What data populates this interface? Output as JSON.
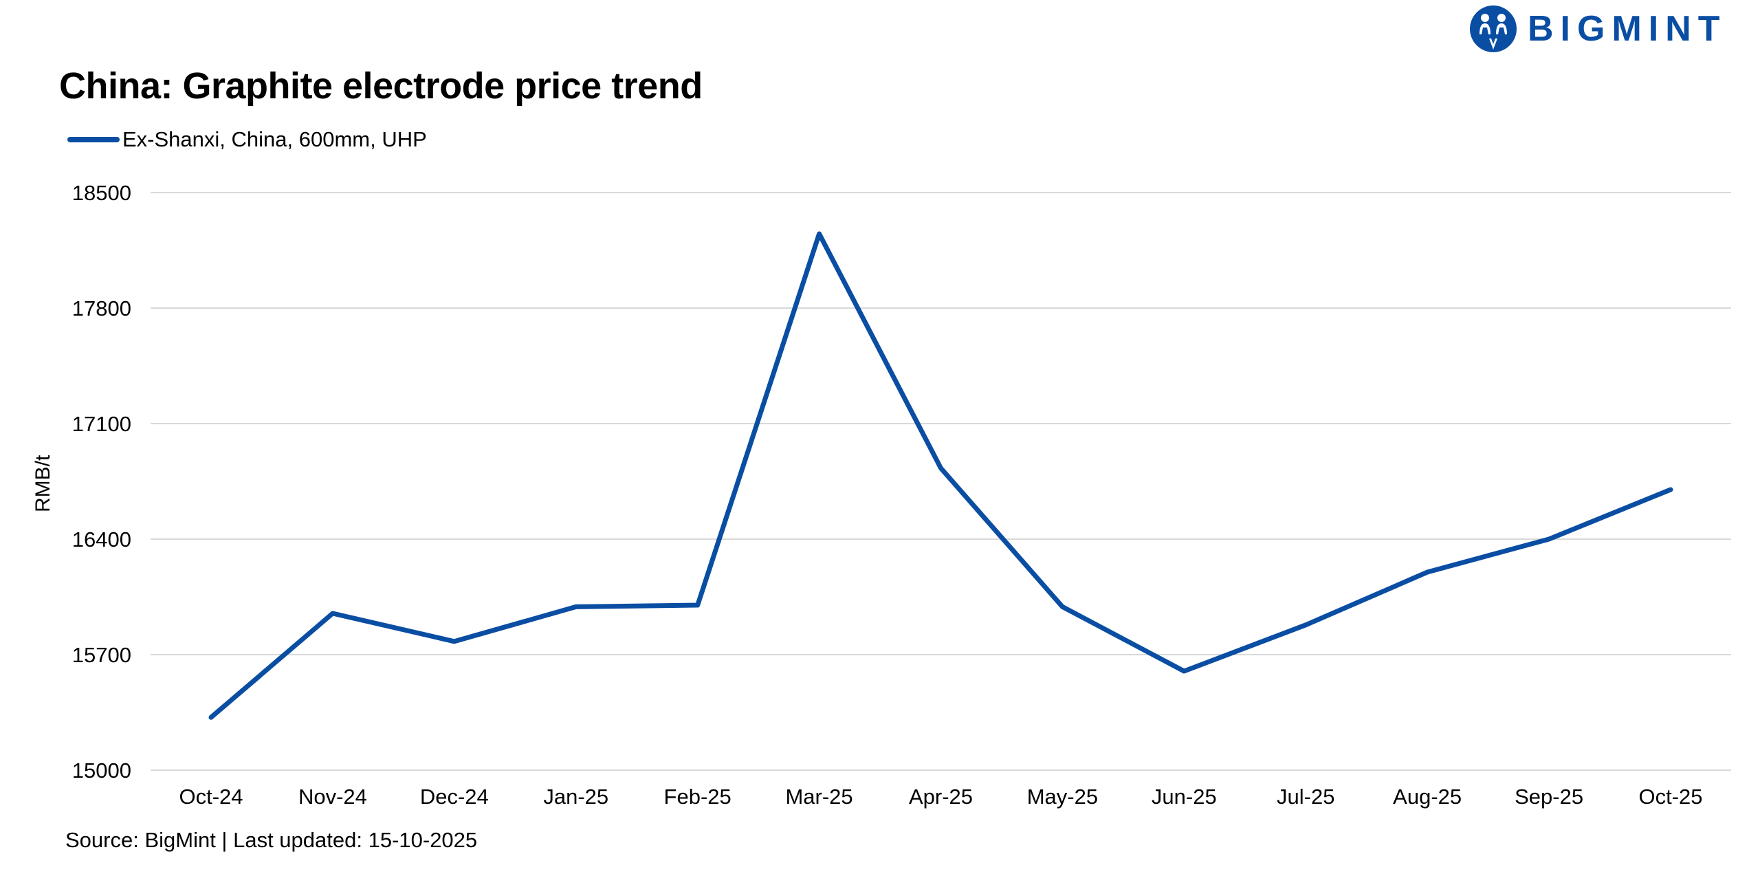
{
  "header": {
    "title": "China: Graphite electrode price trend",
    "logo_text": "BIGMINT",
    "logo_icon": "bigmint-people-icon"
  },
  "legend": {
    "items": [
      {
        "label": "Ex-Shanxi, China, 600mm, UHP",
        "color": "#0a4ea3"
      }
    ]
  },
  "axes": {
    "ylabel": "RMB/t",
    "yticks": [
      "18500",
      "17800",
      "17100",
      "16400",
      "15700",
      "15000"
    ]
  },
  "footer": {
    "source": "Source: BigMint | Last updated: 15-10-2025"
  },
  "colors": {
    "series": "#0a4ea3",
    "grid": "#d9d9d9",
    "brand": "#0a4ea3"
  },
  "chart_data": {
    "type": "line",
    "title": "China: Graphite electrode price trend",
    "xlabel": "",
    "ylabel": "RMB/t",
    "ylim": [
      15000,
      18500
    ],
    "yticks": [
      15000,
      15700,
      16400,
      17100,
      17800,
      18500
    ],
    "grid": true,
    "legend_position": "top-left",
    "categories": [
      "Oct-24",
      "Nov-24",
      "Dec-24",
      "Jan-25",
      "Feb-25",
      "Mar-25",
      "Apr-25",
      "May-25",
      "Jun-25",
      "Jul-25",
      "Aug-25",
      "Sep-25",
      "Oct-25"
    ],
    "series": [
      {
        "name": "Ex-Shanxi, China, 600mm, UHP",
        "color": "#0a4ea3",
        "values": [
          15320,
          15950,
          15780,
          15990,
          16000,
          18250,
          16830,
          15990,
          15600,
          15880,
          16200,
          16400,
          16700
        ]
      }
    ],
    "annotations": [
      "Source: BigMint | Last updated: 15-10-2025"
    ]
  }
}
